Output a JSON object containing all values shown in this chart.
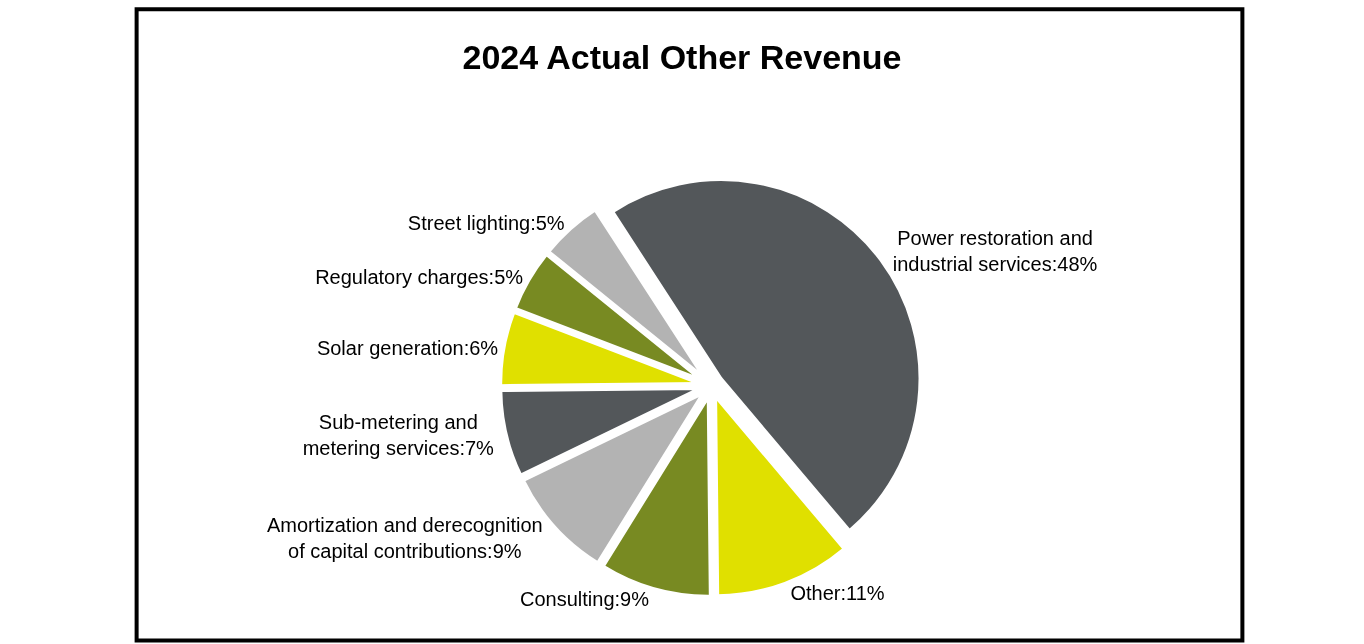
{
  "chart_data": {
    "type": "pie",
    "title": "2024 Actual Other Revenue",
    "categories": [
      "Power restoration and industrial services",
      "Other",
      "Consulting",
      "Amortization and derecognition of capital contributions",
      "Sub-metering and metering services",
      "Solar generation",
      "Regulatory charges",
      "Street lighting"
    ],
    "values": [
      48,
      11,
      9,
      9,
      7,
      6,
      5,
      5
    ],
    "value_labels": [
      "48%",
      "11%",
      "9%",
      "9%",
      "7%",
      "6%",
      "5%",
      "5%"
    ],
    "colors": [
      "#53575a",
      "#e0e000",
      "#788a22",
      "#b3b3b3",
      "#53575a",
      "#e0e000",
      "#788a22",
      "#b3b3b3"
    ],
    "legend": false
  }
}
